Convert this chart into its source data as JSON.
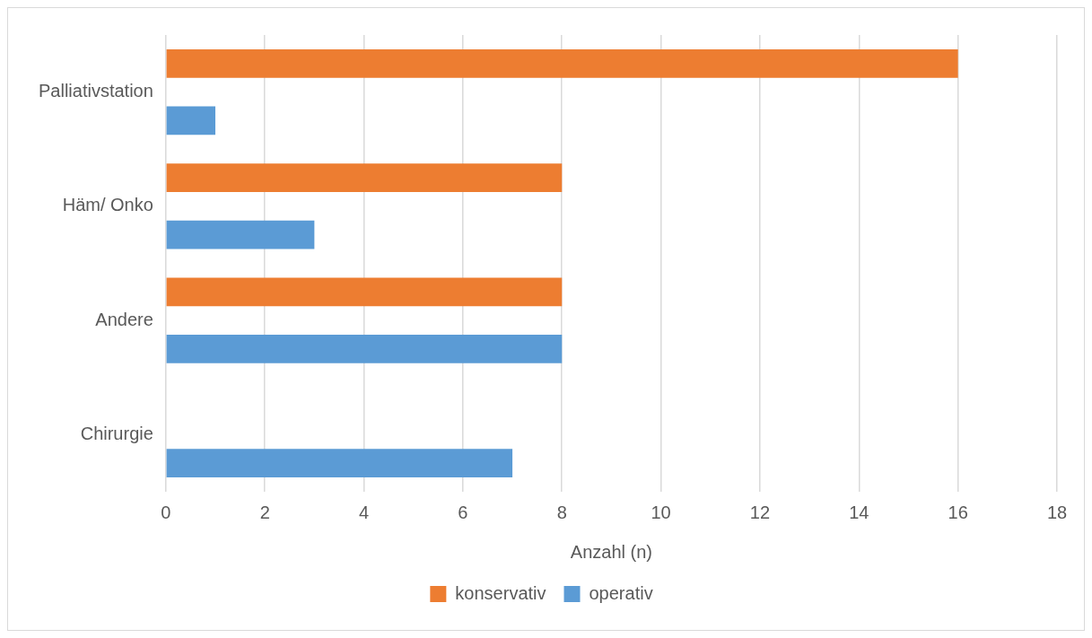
{
  "chart_data": {
    "type": "bar",
    "orientation": "horizontal",
    "xlabel": "Anzahl (n)",
    "categories": [
      "Palliativstation",
      "Häm/ Onko",
      "Andere",
      "Chirurgie"
    ],
    "series": [
      {
        "name": "konservativ",
        "color": "#ed7d31",
        "values": [
          16,
          8,
          8,
          0
        ]
      },
      {
        "name": "operativ",
        "color": "#5b9bd5",
        "values": [
          1,
          3,
          8,
          7
        ]
      }
    ],
    "xlim": [
      0,
      18
    ],
    "xticks": [
      0,
      2,
      4,
      6,
      8,
      10,
      12,
      14,
      16,
      18
    ],
    "grid": "x",
    "legend": "bottom"
  }
}
